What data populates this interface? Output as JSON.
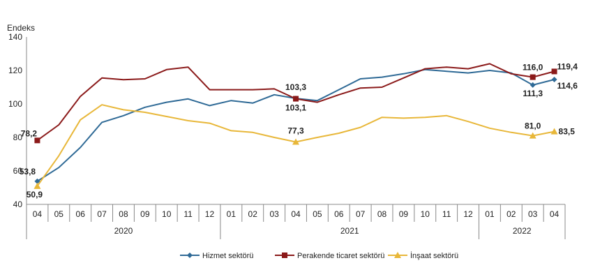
{
  "chart_data": {
    "type": "line",
    "ylabel": "Endeks",
    "ylim": [
      40,
      140
    ],
    "yticks": [
      "40",
      "60",
      "80",
      "100",
      "120",
      "140"
    ],
    "ytick_values": [
      40,
      60,
      80,
      100,
      120,
      140
    ],
    "categories": [
      "04",
      "05",
      "06",
      "07",
      "08",
      "09",
      "10",
      "11",
      "12",
      "01",
      "02",
      "03",
      "04",
      "05",
      "06",
      "07",
      "08",
      "09",
      "10",
      "11",
      "12",
      "01",
      "02",
      "03",
      "04"
    ],
    "years": [
      {
        "label": "2020",
        "start": 0,
        "end": 8
      },
      {
        "label": "2021",
        "start": 9,
        "end": 20
      },
      {
        "label": "2022",
        "start": 21,
        "end": 24
      }
    ],
    "series": [
      {
        "name": "Hizmet sektörü",
        "color": "#2f6a96",
        "marker": "diamond",
        "values": [
          53.8,
          62.0,
          74.0,
          89.0,
          93.0,
          98.0,
          101.0,
          103.0,
          99.0,
          102.0,
          100.5,
          105.5,
          103.3,
          102.0,
          108.5,
          115.0,
          116.0,
          118.0,
          120.5,
          119.5,
          118.5,
          120.0,
          118.5,
          111.3,
          114.6
        ]
      },
      {
        "name": "Perakende ticaret sektörü",
        "color": "#8b1a1a",
        "marker": "square",
        "values": [
          78.2,
          87.5,
          104.5,
          115.5,
          114.5,
          115.0,
          120.5,
          122.0,
          108.5,
          108.5,
          108.5,
          109.0,
          103.1,
          101.0,
          105.5,
          109.5,
          110.0,
          115.5,
          121.0,
          122.0,
          121.0,
          124.0,
          118.0,
          116.0,
          119.4
        ]
      },
      {
        "name": "İnşaat sektörü",
        "color": "#e8b739",
        "marker": "triangle",
        "values": [
          50.9,
          69.0,
          90.5,
          99.5,
          96.5,
          95.0,
          92.5,
          90.0,
          88.5,
          84.0,
          83.0,
          80.0,
          77.3,
          80.0,
          82.5,
          86.0,
          92.0,
          91.5,
          92.0,
          93.0,
          89.5,
          85.5,
          83.0,
          81.0,
          83.5
        ]
      }
    ],
    "annotations": [
      {
        "series": 0,
        "index": 0,
        "text": "53,8"
      },
      {
        "series": 1,
        "index": 0,
        "text": "78,2"
      },
      {
        "series": 2,
        "index": 0,
        "text": "50,9"
      },
      {
        "series": 0,
        "index": 12,
        "text": "103,3"
      },
      {
        "series": 1,
        "index": 12,
        "text": "103,1"
      },
      {
        "series": 2,
        "index": 12,
        "text": "77,3"
      },
      {
        "series": 1,
        "index": 23,
        "text": "116,0"
      },
      {
        "series": 0,
        "index": 23,
        "text": "111,3"
      },
      {
        "series": 2,
        "index": 23,
        "text": "81,0"
      },
      {
        "series": 1,
        "index": 24,
        "text": "119,4"
      },
      {
        "series": 0,
        "index": 24,
        "text": "114,6"
      },
      {
        "series": 2,
        "index": 24,
        "text": "83,5"
      }
    ]
  }
}
